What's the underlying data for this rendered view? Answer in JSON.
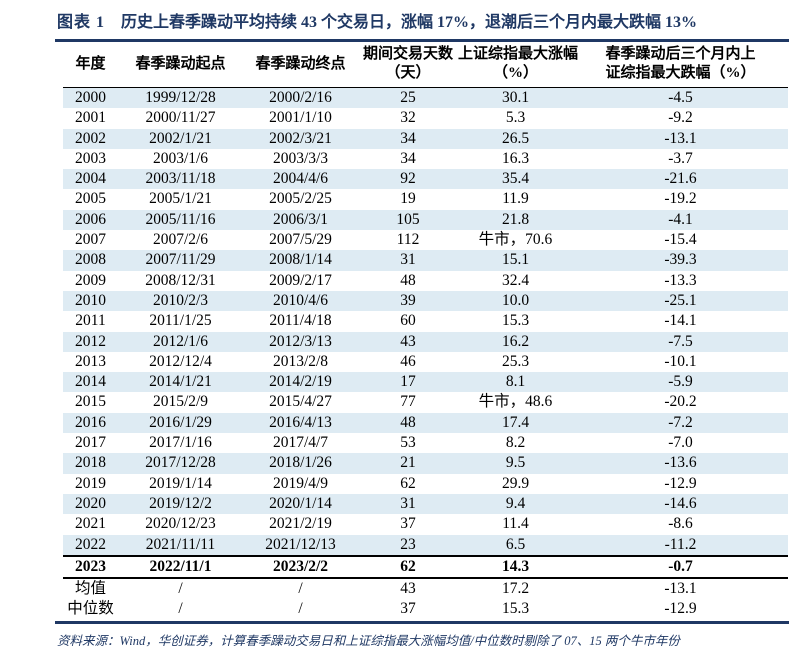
{
  "figure": {
    "label": "图表 1",
    "title": "历史上春季躁动平均持续 43 个交易日，涨幅 17%，退潮后三个月内最大跌幅 13%"
  },
  "table": {
    "columns": [
      {
        "lines": [
          "年度"
        ]
      },
      {
        "lines": [
          "春季躁动起点"
        ]
      },
      {
        "lines": [
          "春季躁动终点"
        ]
      },
      {
        "lines": [
          "期间交易天数",
          "（天）"
        ]
      },
      {
        "lines": [
          "上证综指最大涨幅",
          "（%）"
        ]
      },
      {
        "lines": [
          "春季躁动后三个月内上",
          "证综指最大跌幅（%）"
        ]
      }
    ],
    "rows": [
      {
        "cells": [
          "2000",
          "1999/12/28",
          "2000/2/16",
          "25",
          "30.1",
          "-4.5"
        ],
        "shaded": true,
        "emphasis": false
      },
      {
        "cells": [
          "2001",
          "2000/11/27",
          "2001/1/10",
          "32",
          "5.3",
          "-9.2"
        ],
        "shaded": false,
        "emphasis": false
      },
      {
        "cells": [
          "2002",
          "2002/1/21",
          "2002/3/21",
          "34",
          "26.5",
          "-13.1"
        ],
        "shaded": true,
        "emphasis": false
      },
      {
        "cells": [
          "2003",
          "2003/1/6",
          "2003/3/3",
          "34",
          "16.3",
          "-3.7"
        ],
        "shaded": false,
        "emphasis": false
      },
      {
        "cells": [
          "2004",
          "2003/11/18",
          "2004/4/6",
          "92",
          "35.4",
          "-21.6"
        ],
        "shaded": true,
        "emphasis": false
      },
      {
        "cells": [
          "2005",
          "2005/1/21",
          "2005/2/25",
          "19",
          "11.9",
          "-19.2"
        ],
        "shaded": false,
        "emphasis": false
      },
      {
        "cells": [
          "2006",
          "2005/11/16",
          "2006/3/1",
          "105",
          "21.8",
          "-4.1"
        ],
        "shaded": true,
        "emphasis": false
      },
      {
        "cells": [
          "2007",
          "2007/2/6",
          "2007/5/29",
          "112",
          "牛市，70.6",
          "-15.4"
        ],
        "shaded": false,
        "emphasis": false
      },
      {
        "cells": [
          "2008",
          "2007/11/29",
          "2008/1/14",
          "31",
          "15.1",
          "-39.3"
        ],
        "shaded": true,
        "emphasis": false
      },
      {
        "cells": [
          "2009",
          "2008/12/31",
          "2009/2/17",
          "48",
          "32.4",
          "-13.3"
        ],
        "shaded": false,
        "emphasis": false
      },
      {
        "cells": [
          "2010",
          "2010/2/3",
          "2010/4/6",
          "39",
          "10.0",
          "-25.1"
        ],
        "shaded": true,
        "emphasis": false
      },
      {
        "cells": [
          "2011",
          "2011/1/25",
          "2011/4/18",
          "60",
          "15.3",
          "-14.1"
        ],
        "shaded": false,
        "emphasis": false
      },
      {
        "cells": [
          "2012",
          "2012/1/6",
          "2012/3/13",
          "43",
          "16.2",
          "-7.5"
        ],
        "shaded": true,
        "emphasis": false
      },
      {
        "cells": [
          "2013",
          "2012/12/4",
          "2013/2/8",
          "46",
          "25.3",
          "-10.1"
        ],
        "shaded": false,
        "emphasis": false
      },
      {
        "cells": [
          "2014",
          "2014/1/21",
          "2014/2/19",
          "17",
          "8.1",
          "-5.9"
        ],
        "shaded": true,
        "emphasis": false
      },
      {
        "cells": [
          "2015",
          "2015/2/9",
          "2015/4/27",
          "77",
          "牛市，48.6",
          "-20.2"
        ],
        "shaded": false,
        "emphasis": false
      },
      {
        "cells": [
          "2016",
          "2016/1/29",
          "2016/4/13",
          "48",
          "17.4",
          "-7.2"
        ],
        "shaded": true,
        "emphasis": false
      },
      {
        "cells": [
          "2017",
          "2017/1/16",
          "2017/4/7",
          "53",
          "8.2",
          "-7.0"
        ],
        "shaded": false,
        "emphasis": false
      },
      {
        "cells": [
          "2018",
          "2017/12/28",
          "2018/1/26",
          "21",
          "9.5",
          "-13.6"
        ],
        "shaded": true,
        "emphasis": false
      },
      {
        "cells": [
          "2019",
          "2019/1/14",
          "2019/4/9",
          "62",
          "29.9",
          "-12.9"
        ],
        "shaded": false,
        "emphasis": false
      },
      {
        "cells": [
          "2020",
          "2019/12/2",
          "2020/1/14",
          "31",
          "9.4",
          "-14.6"
        ],
        "shaded": true,
        "emphasis": false
      },
      {
        "cells": [
          "2021",
          "2020/12/23",
          "2021/2/19",
          "37",
          "11.4",
          "-8.6"
        ],
        "shaded": false,
        "emphasis": false
      },
      {
        "cells": [
          "2022",
          "2021/11/11",
          "2021/12/13",
          "23",
          "6.5",
          "-11.2"
        ],
        "shaded": true,
        "emphasis": false
      },
      {
        "cells": [
          "2023",
          "2022/11/1",
          "2023/2/2",
          "62",
          "14.3",
          "-0.7"
        ],
        "shaded": false,
        "emphasis": true
      },
      {
        "cells": [
          "均值",
          "/",
          "/",
          "43",
          "17.2",
          "-13.1"
        ],
        "shaded": false,
        "emphasis": false
      },
      {
        "cells": [
          "中位数",
          "/",
          "/",
          "37",
          "15.3",
          "-12.9"
        ],
        "shaded": false,
        "emphasis": false
      }
    ]
  },
  "source_note": "资料来源：Wind，华创证券，计算春季躁动交易日和上证综指最大涨幅均值/中位数时剔除了 07、15 两个牛市年份",
  "colors": {
    "accent_navy": "#1F3864",
    "row_stripe": "#DEEBF3"
  }
}
